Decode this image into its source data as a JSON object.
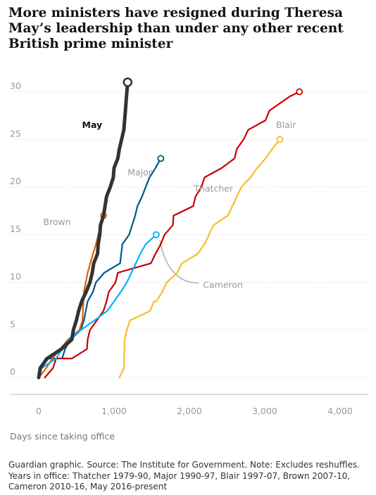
{
  "chart_data": {
    "type": "line",
    "title": "More ministers have resigned during Theresa May’s leadership than under any other recent British prime minister",
    "xlabel": "Days since taking office",
    "ylabel": "",
    "xlim": [
      -300,
      4300
    ],
    "ylim": [
      -2,
      31
    ],
    "x_ticks": [
      0,
      1000,
      2000,
      3000,
      4000
    ],
    "x_tick_labels": [
      "0",
      "1,000",
      "2,000",
      "3,000",
      "4,000"
    ],
    "y_ticks": [
      0,
      5,
      10,
      15,
      20,
      25,
      30
    ],
    "y_tick_labels": [
      "0",
      "5",
      "10",
      "15",
      "20",
      "25",
      "30"
    ],
    "grid": true,
    "legend": "none (series labelled directly on the lines)",
    "series": [
      {
        "name": "Thatcher",
        "color": "#f5be2c",
        "label_at": [
          2060,
          19.8
        ],
        "points": [
          [
            1070,
            0
          ],
          [
            1130,
            1
          ],
          [
            1140,
            4
          ],
          [
            1170,
            5
          ],
          [
            1210,
            6
          ],
          [
            1480,
            7
          ],
          [
            1530,
            8
          ],
          [
            1560,
            8
          ],
          [
            1640,
            9
          ],
          [
            1700,
            10
          ],
          [
            1840,
            11
          ],
          [
            1900,
            12
          ],
          [
            2110,
            13
          ],
          [
            2200,
            14
          ],
          [
            2260,
            15
          ],
          [
            2320,
            16
          ],
          [
            2510,
            17
          ],
          [
            2570,
            18
          ],
          [
            2630,
            19
          ],
          [
            2690,
            20
          ],
          [
            2810,
            21
          ],
          [
            2900,
            22
          ],
          [
            3010,
            23
          ],
          [
            3100,
            24
          ],
          [
            3200,
            25
          ]
        ]
      },
      {
        "name": "Major",
        "color": "#005689",
        "label_at": [
          1180,
          21.5
        ],
        "points": [
          [
            0,
            0
          ],
          [
            30,
            1
          ],
          [
            90,
            2
          ],
          [
            310,
            2
          ],
          [
            350,
            3
          ],
          [
            420,
            4
          ],
          [
            560,
            5
          ],
          [
            600,
            6
          ],
          [
            650,
            8
          ],
          [
            720,
            9
          ],
          [
            760,
            10
          ],
          [
            870,
            11
          ],
          [
            1080,
            12
          ],
          [
            1110,
            14
          ],
          [
            1200,
            15
          ],
          [
            1240,
            16
          ],
          [
            1280,
            17
          ],
          [
            1310,
            18
          ],
          [
            1370,
            19
          ],
          [
            1420,
            20
          ],
          [
            1470,
            21
          ],
          [
            1550,
            22
          ],
          [
            1620,
            23
          ]
        ]
      },
      {
        "name": "Blair",
        "color": "#c70000",
        "label_at": [
          3150,
          26.5
        ],
        "points": [
          [
            80,
            0
          ],
          [
            190,
            1
          ],
          [
            230,
            2
          ],
          [
            440,
            2
          ],
          [
            640,
            3
          ],
          [
            650,
            4
          ],
          [
            680,
            5
          ],
          [
            770,
            6
          ],
          [
            860,
            7
          ],
          [
            900,
            8
          ],
          [
            930,
            9
          ],
          [
            1020,
            10
          ],
          [
            1050,
            11
          ],
          [
            1490,
            12
          ],
          [
            1550,
            13
          ],
          [
            1620,
            14
          ],
          [
            1670,
            15
          ],
          [
            1780,
            16
          ],
          [
            1790,
            17
          ],
          [
            2050,
            18
          ],
          [
            2080,
            19
          ],
          [
            2160,
            20
          ],
          [
            2200,
            21
          ],
          [
            2430,
            22
          ],
          [
            2600,
            23
          ],
          [
            2630,
            24
          ],
          [
            2720,
            25
          ],
          [
            2780,
            26
          ],
          [
            3010,
            27
          ],
          [
            3060,
            28
          ],
          [
            3240,
            29
          ],
          [
            3330,
            29.5
          ],
          [
            3460,
            30
          ]
        ]
      },
      {
        "name": "Brown",
        "color": "#e05e00",
        "label_at": [
          60,
          16.3
        ],
        "points": [
          [
            0,
            0
          ],
          [
            100,
            1
          ],
          [
            180,
            2
          ],
          [
            390,
            4
          ],
          [
            540,
            5
          ],
          [
            580,
            6
          ],
          [
            600,
            9
          ],
          [
            650,
            11
          ],
          [
            720,
            13
          ],
          [
            760,
            14
          ],
          [
            790,
            15
          ],
          [
            830,
            16
          ],
          [
            860,
            17
          ]
        ]
      },
      {
        "name": "Cameron",
        "color": "#00b2ff",
        "label_at": [
          2180,
          9.7
        ],
        "points": [
          [
            0,
            0
          ],
          [
            40,
            1
          ],
          [
            230,
            2
          ],
          [
            310,
            3
          ],
          [
            400,
            4
          ],
          [
            560,
            5
          ],
          [
            740,
            6
          ],
          [
            910,
            7
          ],
          [
            1000,
            8
          ],
          [
            1090,
            9
          ],
          [
            1170,
            10
          ],
          [
            1230,
            11
          ],
          [
            1290,
            12
          ],
          [
            1350,
            13
          ],
          [
            1420,
            14
          ],
          [
            1560,
            15
          ]
        ]
      },
      {
        "name": "May",
        "color": "#333333",
        "label_at": [
          575,
          26.5
        ],
        "points": [
          [
            0,
            0
          ],
          [
            20,
            1
          ],
          [
            110,
            2
          ],
          [
            300,
            3
          ],
          [
            440,
            4
          ],
          [
            460,
            5
          ],
          [
            500,
            6
          ],
          [
            530,
            7
          ],
          [
            570,
            8
          ],
          [
            630,
            9
          ],
          [
            680,
            10
          ],
          [
            710,
            11
          ],
          [
            730,
            12
          ],
          [
            780,
            13
          ],
          [
            790,
            14
          ],
          [
            810,
            15
          ],
          [
            820,
            16
          ],
          [
            860,
            17
          ],
          [
            880,
            18
          ],
          [
            900,
            19
          ],
          [
            950,
            20
          ],
          [
            990,
            21
          ],
          [
            1000,
            22
          ],
          [
            1050,
            23
          ],
          [
            1070,
            24
          ],
          [
            1100,
            25
          ],
          [
            1130,
            26
          ],
          [
            1140,
            27
          ],
          [
            1150,
            28
          ],
          [
            1160,
            29
          ],
          [
            1170,
            30
          ],
          [
            1180,
            31
          ]
        ]
      }
    ],
    "annotations": [
      {
        "series": "Cameron",
        "type": "leader-line"
      }
    ]
  },
  "footnote": "Guardian graphic. Source: The Institute for Government. Note: Excludes reshuffles. Years in office: Thatcher 1979-90, Major 1990-97, Blair 1997-07, Brown 2007-10, Cameron 2010-16, May 2016-present"
}
